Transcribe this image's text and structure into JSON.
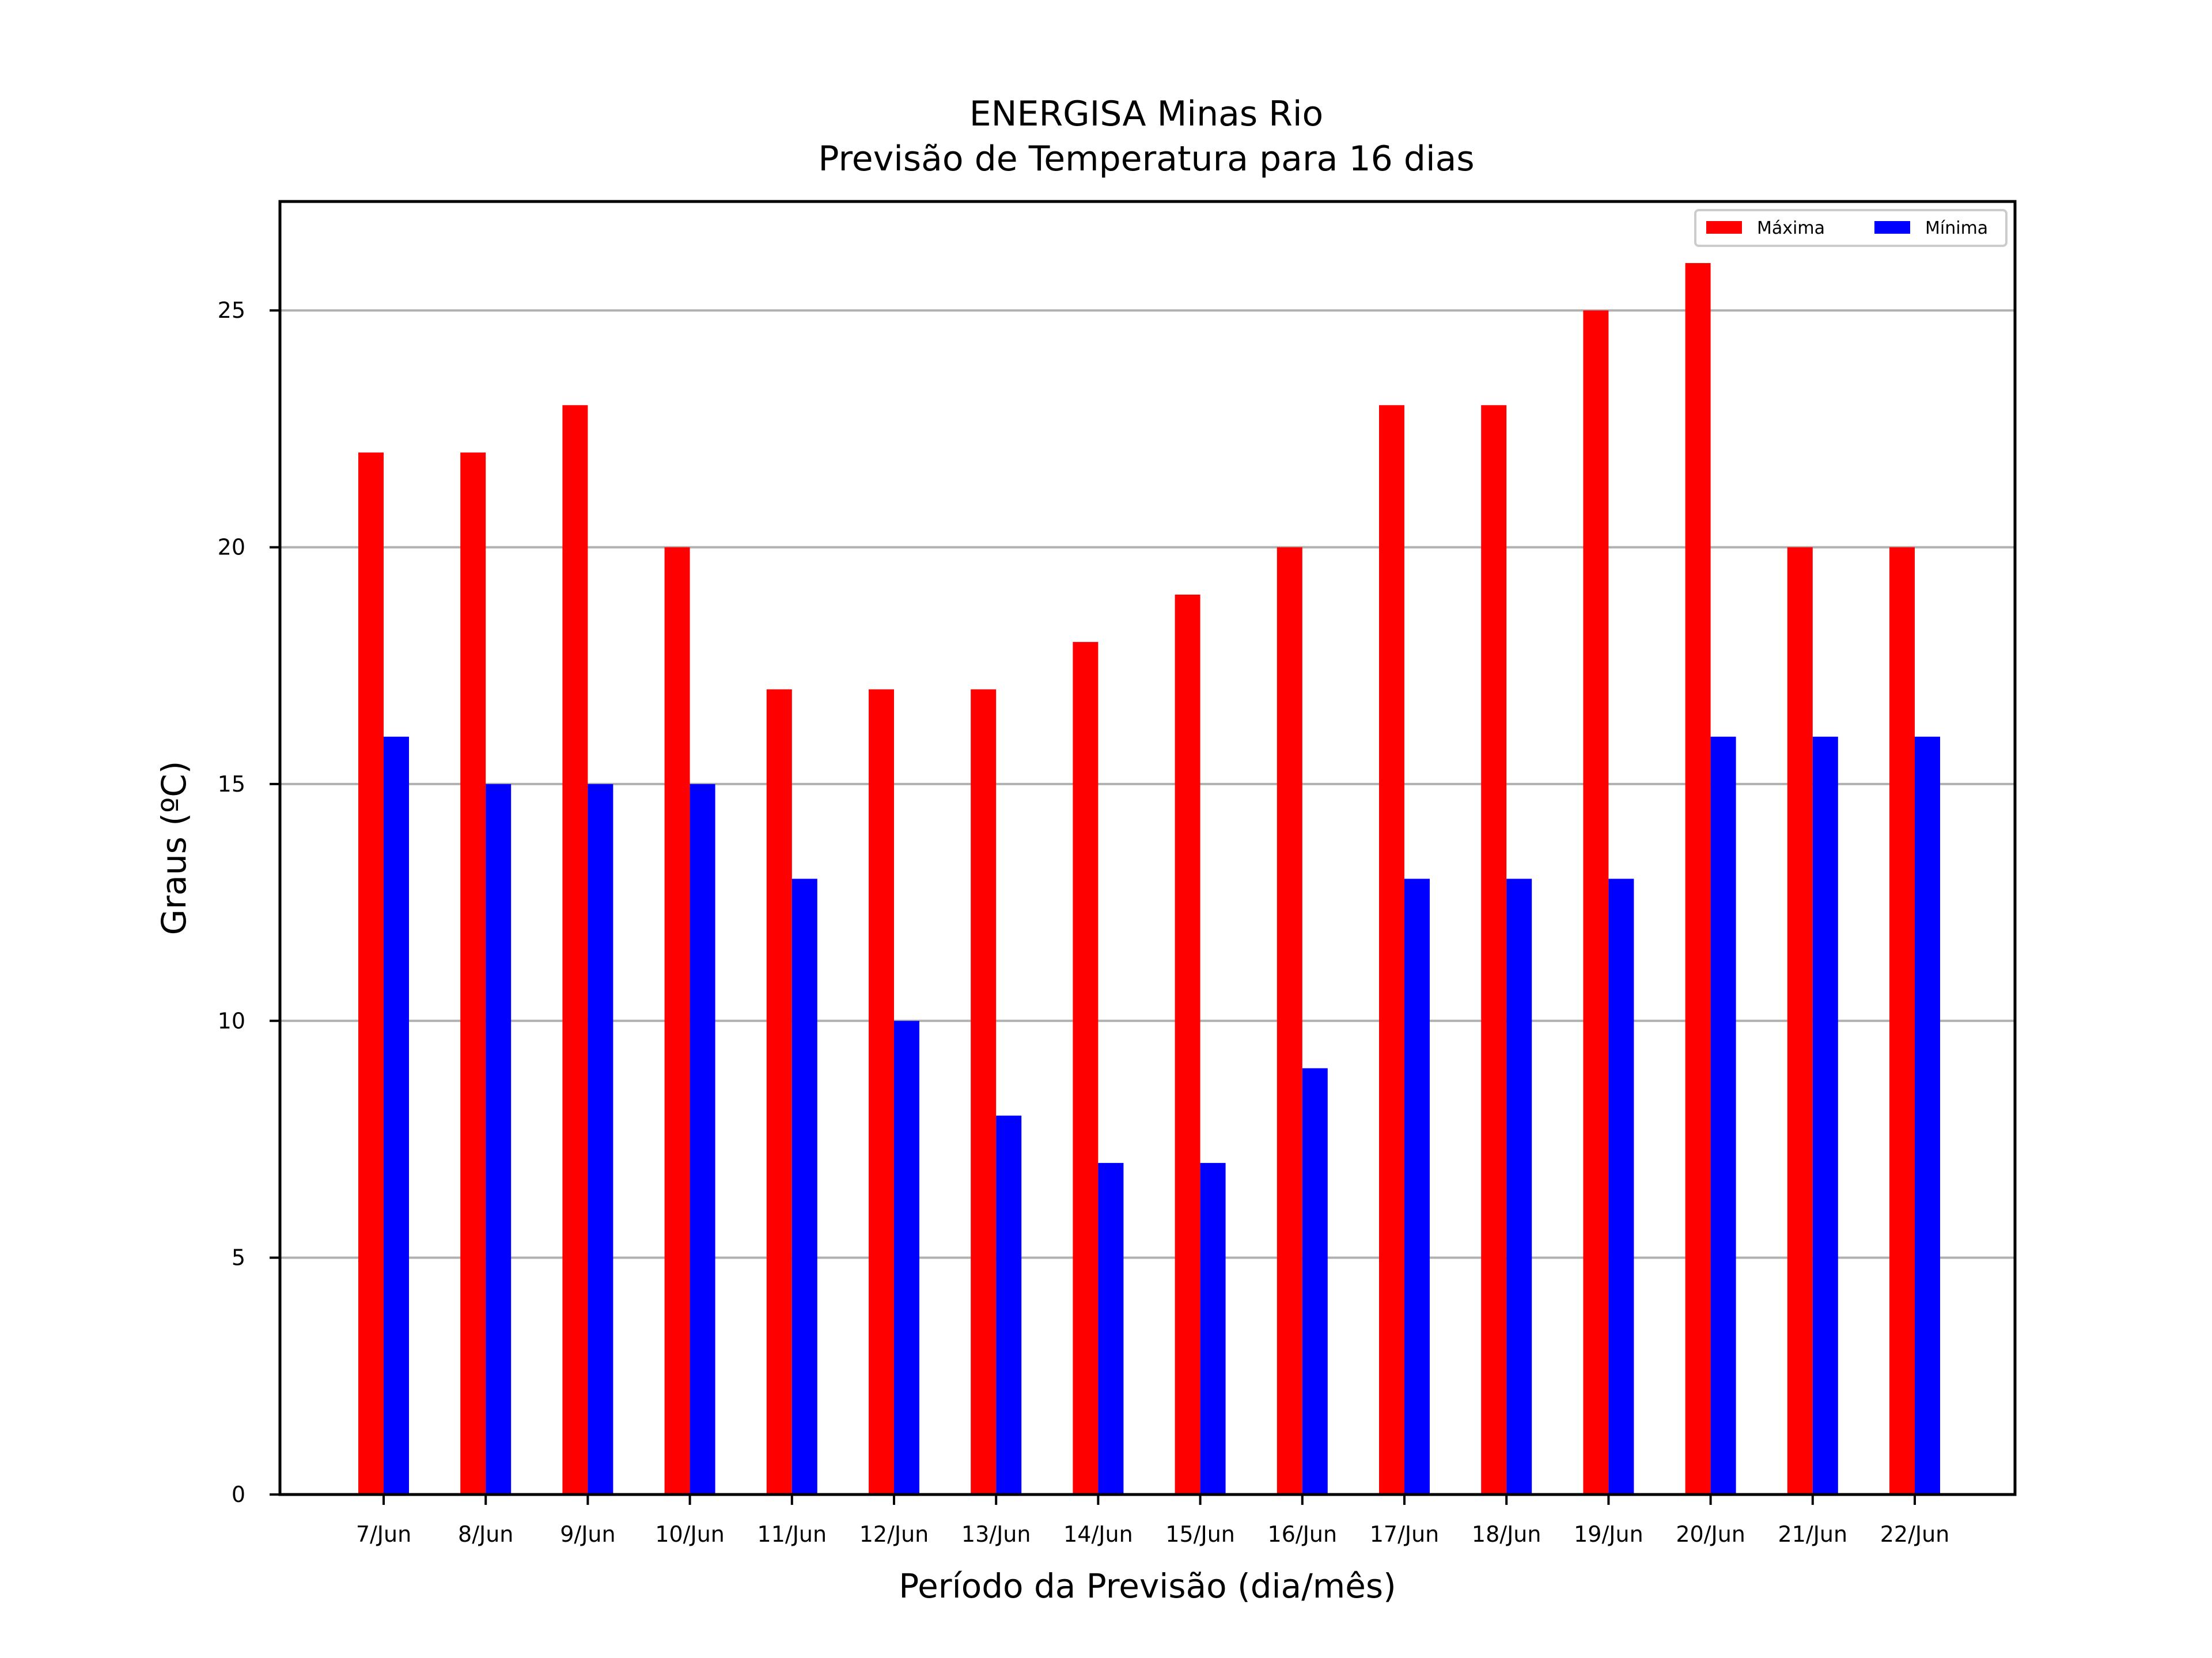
{
  "chart_data": {
    "type": "bar",
    "title": "ENERGISA Minas Rio",
    "subtitle": "Previsão de Temperatura para 16 dias",
    "xlabel": "Período da Previsão (dia/mês)",
    "ylabel": "Graus (ºC)",
    "categories": [
      "7/Jun",
      "8/Jun",
      "9/Jun",
      "10/Jun",
      "11/Jun",
      "12/Jun",
      "13/Jun",
      "14/Jun",
      "15/Jun",
      "16/Jun",
      "17/Jun",
      "18/Jun",
      "19/Jun",
      "20/Jun",
      "21/Jun",
      "22/Jun"
    ],
    "series": [
      {
        "name": "Máxima",
        "color": "#ff0000",
        "values": [
          22,
          22,
          23,
          20,
          17,
          17,
          17,
          18,
          19,
          20,
          23,
          23,
          25,
          26,
          20,
          20
        ]
      },
      {
        "name": "Mínima",
        "color": "#0000ff",
        "values": [
          16,
          15,
          15,
          15,
          13,
          10,
          8,
          7,
          7,
          9,
          13,
          13,
          13,
          16,
          16,
          16
        ]
      }
    ],
    "ylim": [
      0,
      27.3
    ],
    "yticks": [
      0,
      5,
      10,
      15,
      20,
      25
    ],
    "grid": "horizontal",
    "grid_color": "#b0b0b0",
    "legend_position": "top-right"
  }
}
